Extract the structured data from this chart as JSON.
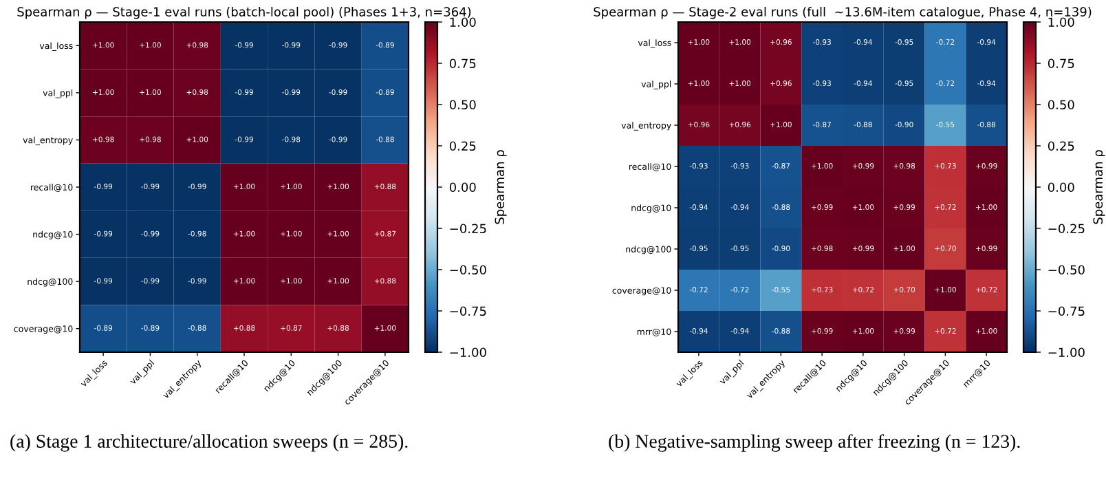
{
  "chart_data": [
    {
      "type": "heatmap",
      "title": "Spearman ρ — Stage-1 eval runs (batch-local pool) (Phases 1+3, n=364)",
      "clabel": "Spearman ρ",
      "categories": [
        "val_loss",
        "val_ppl",
        "val_entropy",
        "recall@10",
        "ndcg@10",
        "ndcg@100",
        "coverage@10"
      ],
      "y_categories": [
        "val_loss",
        "val_ppl",
        "val_entropy",
        "recall@10",
        "ndcg@10",
        "ndcg@100",
        "coverage@10"
      ],
      "cells": [
        [
          1.0,
          1.0,
          0.98,
          -0.99,
          -0.99,
          -0.99,
          -0.89
        ],
        [
          1.0,
          1.0,
          0.98,
          -0.99,
          -0.99,
          -0.99,
          -0.89
        ],
        [
          0.98,
          0.98,
          1.0,
          -0.99,
          -0.98,
          -0.99,
          -0.88
        ],
        [
          -0.99,
          -0.99,
          -0.99,
          1.0,
          1.0,
          1.0,
          0.88
        ],
        [
          -0.99,
          -0.99,
          -0.98,
          1.0,
          1.0,
          1.0,
          0.87
        ],
        [
          -0.99,
          -0.99,
          -0.99,
          1.0,
          1.0,
          1.0,
          0.88
        ],
        [
          -0.89,
          -0.89,
          -0.88,
          0.88,
          0.87,
          0.88,
          1.0
        ]
      ],
      "cell_labels": [
        [
          "+1.00",
          "+1.00",
          "+0.98",
          "-0.99",
          "-0.99",
          "-0.99",
          "-0.89"
        ],
        [
          "+1.00",
          "+1.00",
          "+0.98",
          "-0.99",
          "-0.99",
          "-0.99",
          "-0.89"
        ],
        [
          "+0.98",
          "+0.98",
          "+1.00",
          "-0.99",
          "-0.98",
          "-0.99",
          "-0.88"
        ],
        [
          "-0.99",
          "-0.99",
          "-0.99",
          "+1.00",
          "+1.00",
          "+1.00",
          "+0.88"
        ],
        [
          "-0.99",
          "-0.99",
          "-0.98",
          "+1.00",
          "+1.00",
          "+1.00",
          "+0.87"
        ],
        [
          "-0.99",
          "-0.99",
          "-0.99",
          "+1.00",
          "+1.00",
          "+1.00",
          "+0.88"
        ],
        [
          "-0.89",
          "-0.89",
          "-0.88",
          "+0.88",
          "+0.87",
          "+0.88",
          "+1.00"
        ]
      ],
      "clim": [
        -1.0,
        1.0
      ],
      "cticks": [
        {
          "value": -1.0,
          "label": "−1.00"
        },
        {
          "value": -0.75,
          "label": "−0.75"
        },
        {
          "value": -0.5,
          "label": "−0.50"
        },
        {
          "value": -0.25,
          "label": "−0.25"
        },
        {
          "value": 0.0,
          "label": "0.00"
        },
        {
          "value": 0.25,
          "label": "0.25"
        },
        {
          "value": 0.5,
          "label": "0.50"
        },
        {
          "value": 0.75,
          "label": "0.75"
        },
        {
          "value": 1.0,
          "label": "1.00"
        }
      ],
      "annotations": [
        "(a) Stage 1 architecture/allocation sweeps (n = 285)."
      ]
    },
    {
      "type": "heatmap",
      "title": "Spearman ρ — Stage-2 eval runs (full  ~13.6M-item catalogue, Phase 4, n=139)",
      "clabel": "Spearman ρ",
      "categories": [
        "val_loss",
        "val_ppl",
        "val_entropy",
        "recall@10",
        "ndcg@10",
        "ndcg@100",
        "coverage@10",
        "mrr@10"
      ],
      "y_categories": [
        "val_loss",
        "val_ppl",
        "val_entropy",
        "recall@10",
        "ndcg@10",
        "ndcg@100",
        "coverage@10",
        "mrr@10"
      ],
      "cells": [
        [
          1.0,
          1.0,
          0.96,
          -0.93,
          -0.94,
          -0.95,
          -0.72,
          -0.94
        ],
        [
          1.0,
          1.0,
          0.96,
          -0.93,
          -0.94,
          -0.95,
          -0.72,
          -0.94
        ],
        [
          0.96,
          0.96,
          1.0,
          -0.87,
          -0.88,
          -0.9,
          -0.55,
          -0.88
        ],
        [
          -0.93,
          -0.93,
          -0.87,
          1.0,
          0.99,
          0.98,
          0.73,
          0.99
        ],
        [
          -0.94,
          -0.94,
          -0.88,
          0.99,
          1.0,
          0.99,
          0.72,
          1.0
        ],
        [
          -0.95,
          -0.95,
          -0.9,
          0.98,
          0.99,
          1.0,
          0.7,
          0.99
        ],
        [
          -0.72,
          -0.72,
          -0.55,
          0.73,
          0.72,
          0.7,
          1.0,
          0.72
        ],
        [
          -0.94,
          -0.94,
          -0.88,
          0.99,
          1.0,
          0.99,
          0.72,
          1.0
        ]
      ],
      "cell_labels": [
        [
          "+1.00",
          "+1.00",
          "+0.96",
          "-0.93",
          "-0.94",
          "-0.95",
          "-0.72",
          "-0.94"
        ],
        [
          "+1.00",
          "+1.00",
          "+0.96",
          "-0.93",
          "-0.94",
          "-0.95",
          "-0.72",
          "-0.94"
        ],
        [
          "+0.96",
          "+0.96",
          "+1.00",
          "-0.87",
          "-0.88",
          "-0.90",
          "-0.55",
          "-0.88"
        ],
        [
          "-0.93",
          "-0.93",
          "-0.87",
          "+1.00",
          "+0.99",
          "+0.98",
          "+0.73",
          "+0.99"
        ],
        [
          "-0.94",
          "-0.94",
          "-0.88",
          "+0.99",
          "+1.00",
          "+0.99",
          "+0.72",
          "+1.00"
        ],
        [
          "-0.95",
          "-0.95",
          "-0.90",
          "+0.98",
          "+0.99",
          "+1.00",
          "+0.70",
          "+0.99"
        ],
        [
          "-0.72",
          "-0.72",
          "-0.55",
          "+0.73",
          "+0.72",
          "+0.70",
          "+1.00",
          "+0.72"
        ],
        [
          "-0.94",
          "-0.94",
          "-0.88",
          "+0.99",
          "+1.00",
          "+0.99",
          "+0.72",
          "+1.00"
        ]
      ],
      "clim": [
        -1.0,
        1.0
      ],
      "cticks": [
        {
          "value": -1.0,
          "label": "−1.00"
        },
        {
          "value": -0.75,
          "label": "−0.75"
        },
        {
          "value": -0.5,
          "label": "−0.50"
        },
        {
          "value": -0.25,
          "label": "−0.25"
        },
        {
          "value": 0.0,
          "label": "0.00"
        },
        {
          "value": 0.25,
          "label": "0.25"
        },
        {
          "value": 0.5,
          "label": "0.50"
        },
        {
          "value": 0.75,
          "label": "0.75"
        },
        {
          "value": 1.0,
          "label": "1.00"
        }
      ],
      "annotations": [
        "(b) Negative-sampling sweep after freezing (n = 123)."
      ]
    }
  ]
}
